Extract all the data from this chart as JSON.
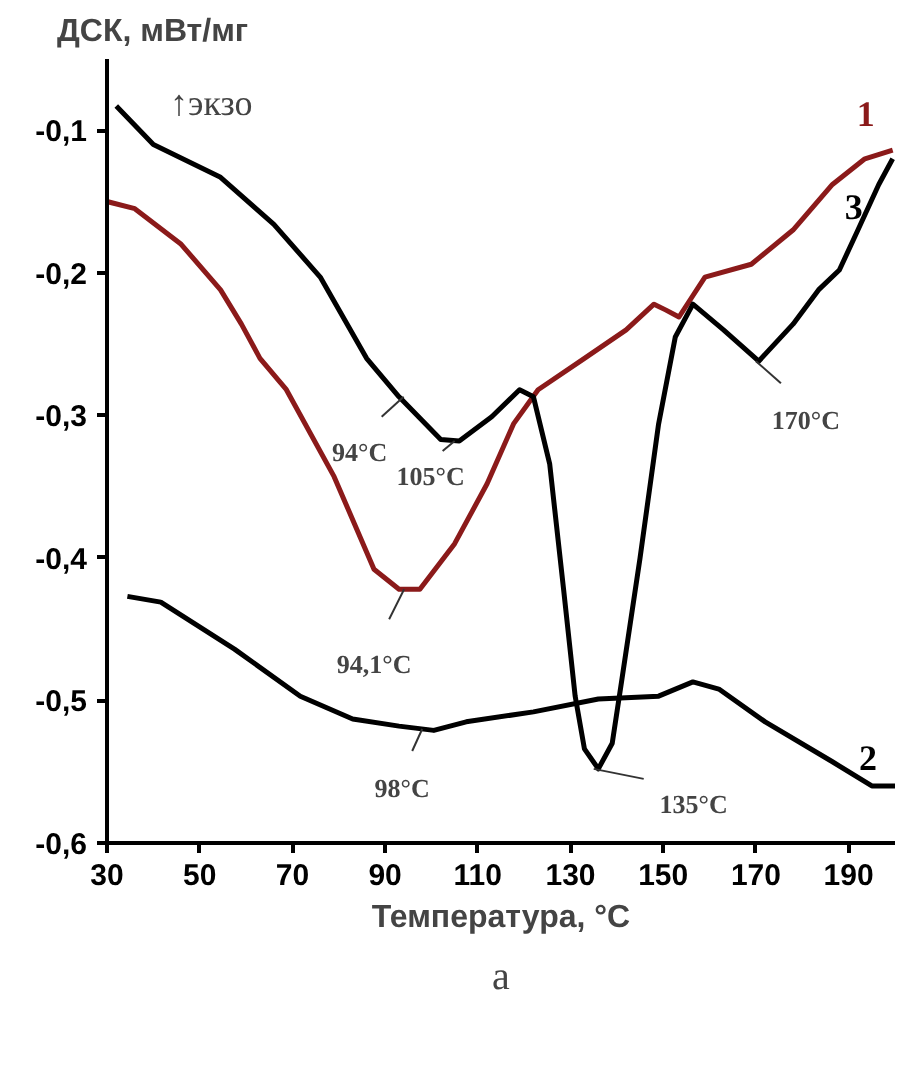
{
  "chart_data": {
    "type": "line",
    "ylabel": "ДСК, мВт/мг",
    "xlabel": "Температура, °C",
    "xlim": [
      30,
      200
    ],
    "ylim": [
      -0.6,
      -0.05
    ],
    "xticks": [
      30,
      50,
      70,
      90,
      110,
      130,
      150,
      170,
      190
    ],
    "yticks": [
      {
        "value": -0.6,
        "label": "-0,6"
      },
      {
        "value": -0.5,
        "label": "-0,5"
      },
      {
        "value": -0.4,
        "label": "-0,4"
      },
      {
        "value": -0.3,
        "label": "-0,3"
      },
      {
        "value": -0.2,
        "label": "-0,2"
      },
      {
        "value": -0.1,
        "label": "-0,1"
      }
    ],
    "grid": false,
    "line_style": "solid",
    "series": [
      {
        "name": "1",
        "color": "#8b1a1a",
        "x": [
          30,
          36,
          46,
          54.5,
          59,
          63,
          68.7,
          79,
          87.6,
          93,
          97.5,
          105,
          112,
          117.7,
          123,
          133,
          142,
          148,
          150.5,
          153.4,
          159,
          169,
          178,
          186.5,
          193.5,
          199.5
        ],
        "values": [
          -0.15,
          -0.155,
          -0.18,
          -0.212,
          -0.236,
          -0.26,
          -0.282,
          -0.343,
          -0.408,
          -0.422,
          -0.422,
          -0.39,
          -0.348,
          -0.306,
          -0.282,
          -0.26,
          -0.24,
          -0.222,
          -0.226,
          -0.231,
          -0.203,
          -0.194,
          -0.17,
          -0.138,
          -0.12,
          -0.114
        ]
      },
      {
        "name": "2",
        "color": "#000000",
        "x": [
          34.4,
          41.6,
          57.5,
          71.7,
          83,
          93,
          100.5,
          107.5,
          122,
          136,
          149,
          156.4,
          162,
          172,
          186.5,
          195,
          200
        ],
        "values": [
          -0.427,
          -0.431,
          -0.464,
          -0.497,
          -0.513,
          -0.518,
          -0.521,
          -0.515,
          -0.508,
          -0.499,
          -0.497,
          -0.487,
          -0.492,
          -0.515,
          -0.543,
          -0.56,
          -0.56
        ]
      },
      {
        "name": "3",
        "color": "#000000",
        "x": [
          32,
          40,
          54.5,
          66,
          76,
          86,
          93,
          102,
          106,
          113,
          119,
          122,
          125.5,
          128.5,
          131,
          133,
          136,
          139,
          141,
          145,
          149,
          152.6,
          156.4,
          163,
          170.6,
          178,
          183.5,
          188,
          192,
          196.5,
          199.5
        ],
        "values": [
          -0.083,
          -0.11,
          -0.133,
          -0.166,
          -0.203,
          -0.26,
          -0.287,
          -0.317,
          -0.318,
          -0.301,
          -0.282,
          -0.287,
          -0.334,
          -0.422,
          -0.497,
          -0.534,
          -0.548,
          -0.53,
          -0.487,
          -0.4,
          -0.306,
          -0.245,
          -0.222,
          -0.24,
          -0.262,
          -0.236,
          -0.212,
          -0.198,
          -0.17,
          -0.138,
          -0.12
        ]
      }
    ],
    "annotations": [
      "↑экзо",
      "а",
      {
        "text": "94°C",
        "x": 94,
        "y": -0.287
      },
      {
        "text": "105°C",
        "x": 105,
        "y": -0.318
      },
      {
        "text": "94,1°C",
        "x": 94.1,
        "y": -0.422
      },
      {
        "text": "98°C",
        "x": 98,
        "y": -0.52
      },
      {
        "text": "135°C",
        "x": 135,
        "y": -0.548
      },
      {
        "text": "170°C",
        "x": 170,
        "y": -0.262
      }
    ]
  }
}
